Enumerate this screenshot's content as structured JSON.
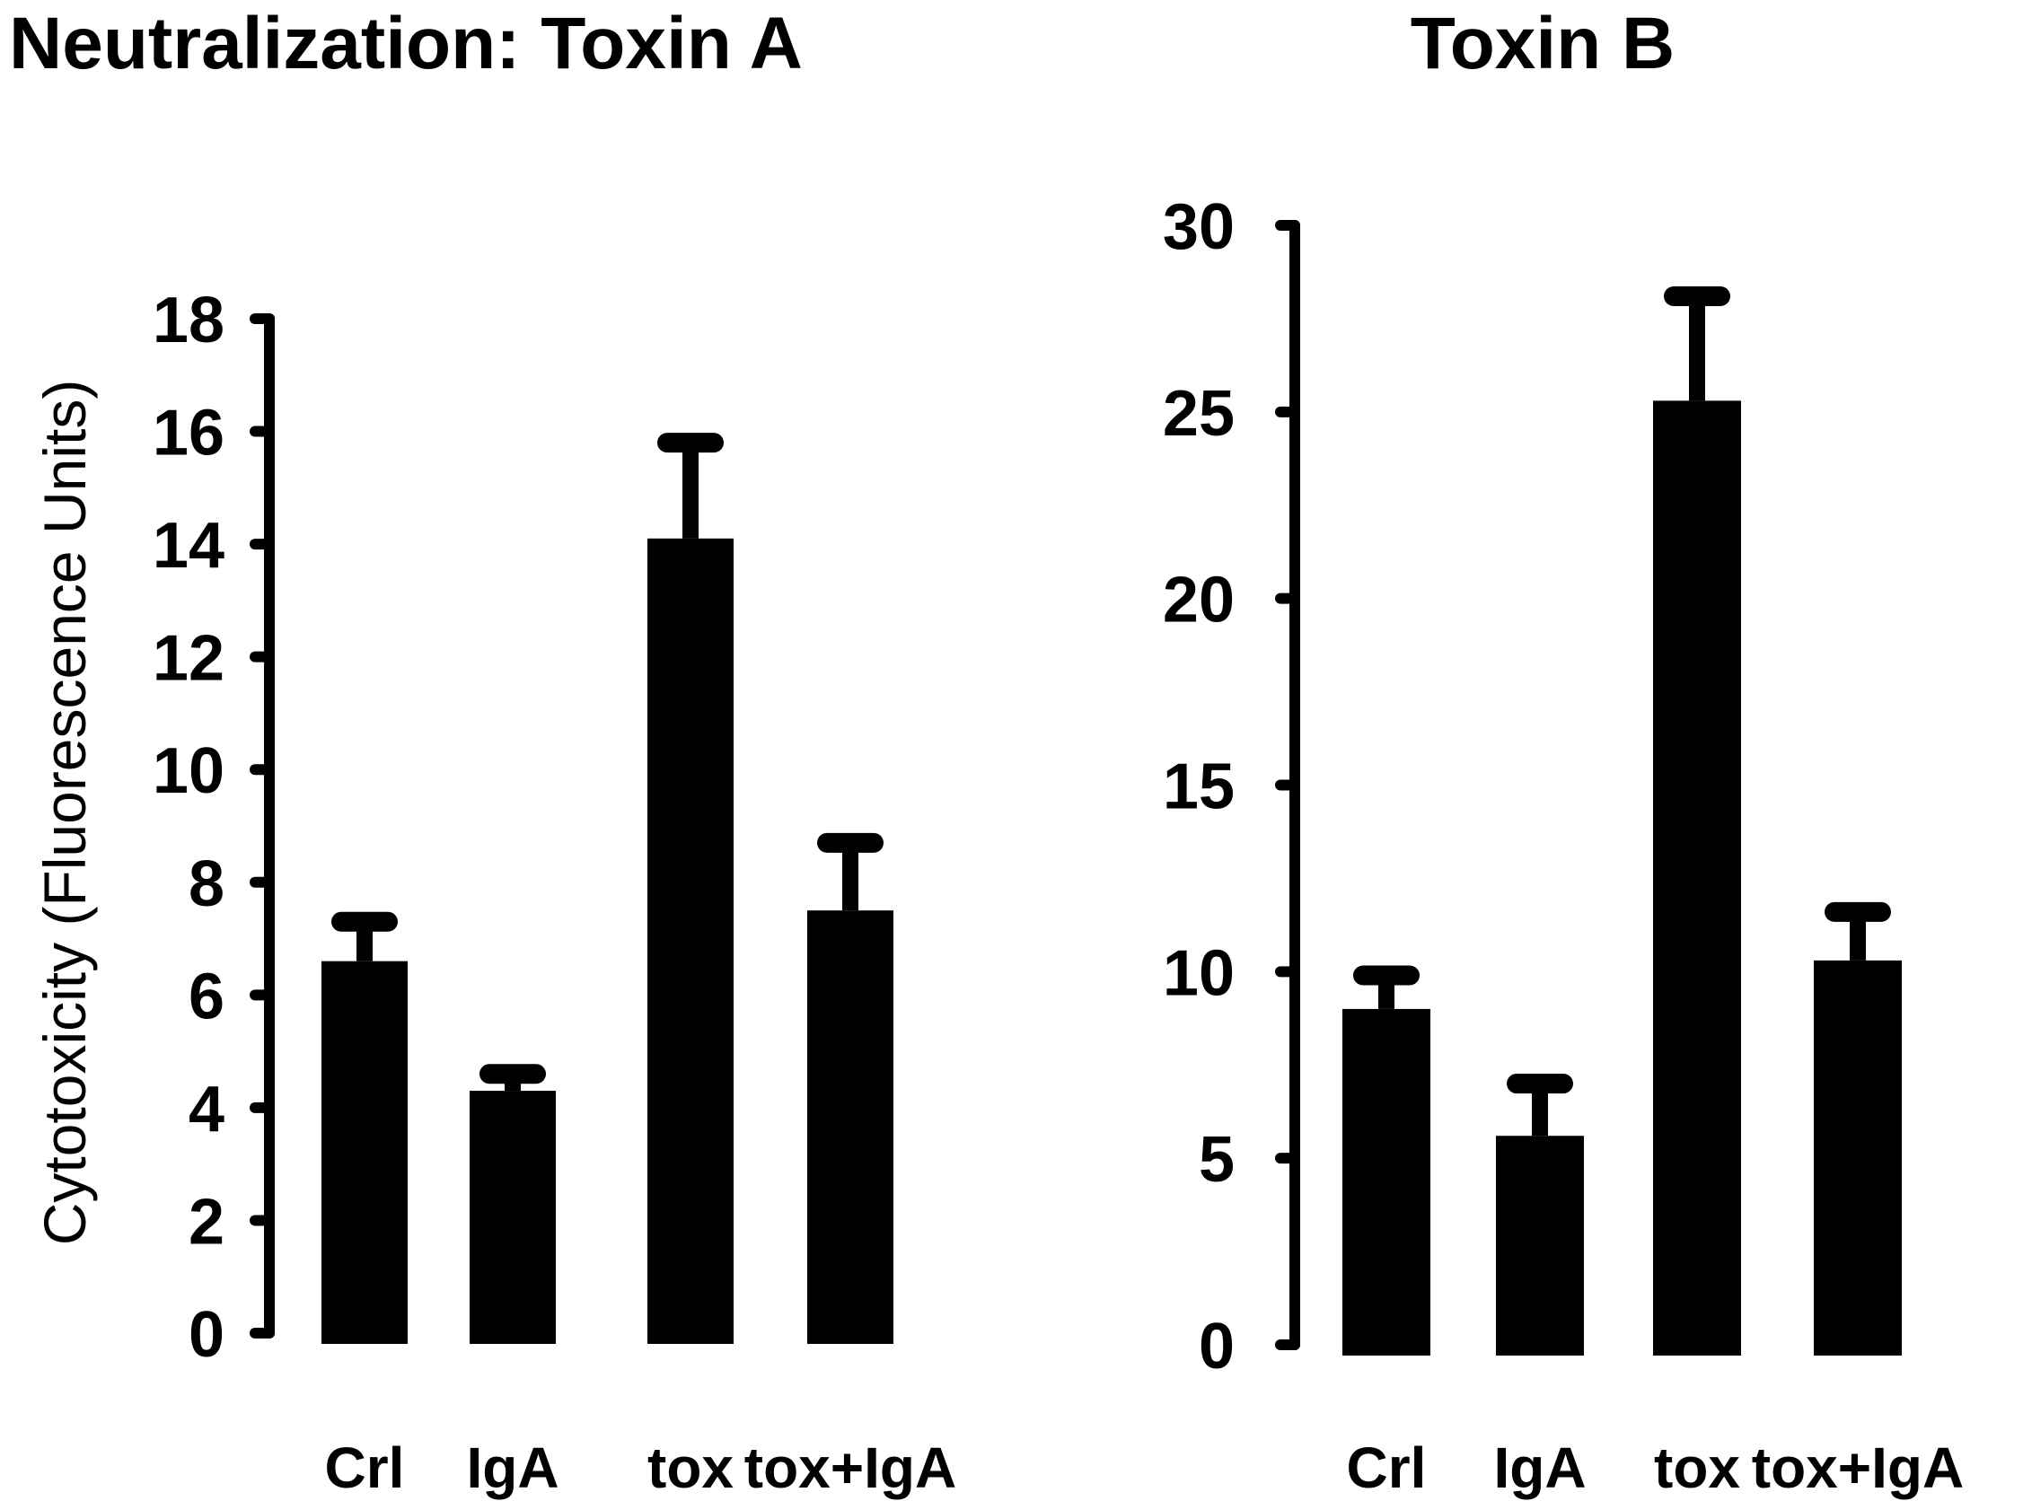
{
  "chart_data": [
    {
      "type": "bar",
      "title": "Neutralization:  Toxin A",
      "ylabel": "Cytotoxicity (Fluorescence Units)",
      "xlabel": "",
      "categories": [
        "Crl",
        "IgA",
        "tox",
        "tox+IgA"
      ],
      "values": [
        6.6,
        4.3,
        14.1,
        7.5
      ],
      "errors": [
        0.7,
        0.3,
        1.7,
        1.2
      ],
      "ylim": [
        0,
        18
      ],
      "yticks": [
        "0",
        "2",
        "4",
        "6",
        "8",
        "10",
        "12",
        "14",
        "16",
        "18"
      ],
      "color": "#000000"
    },
    {
      "type": "bar",
      "title": "Toxin B",
      "ylabel": "",
      "xlabel": "",
      "categories": [
        "Crl",
        "IgA",
        "tox",
        "tox+IgA"
      ],
      "values": [
        9.0,
        5.6,
        25.3,
        10.3
      ],
      "errors": [
        0.9,
        1.4,
        2.8,
        1.3
      ],
      "ylim": [
        0,
        30
      ],
      "yticks": [
        "0",
        "5",
        "10",
        "15",
        "20",
        "25",
        "30"
      ],
      "color": "#000000"
    }
  ]
}
